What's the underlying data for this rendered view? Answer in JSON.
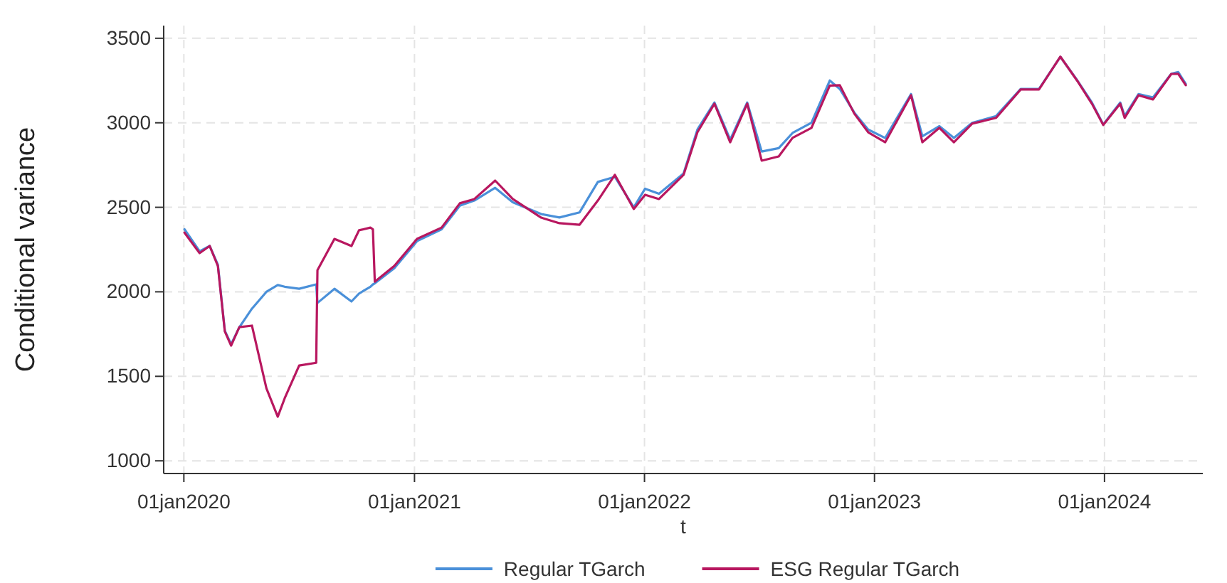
{
  "chart_data": {
    "type": "line",
    "xlabel": "t",
    "ylabel": "Conditional variance",
    "x": [
      "2020-01-02",
      "2020-01-26",
      "2020-02-11",
      "2020-02-24",
      "2020-03-06",
      "2020-03-16",
      "2020-03-29",
      "2020-04-18",
      "2020-05-11",
      "2020-05-29",
      "2020-06-09",
      "2020-07-02",
      "2020-07-29",
      "2020-07-31",
      "2020-08-27",
      "2020-09-23",
      "2020-10-05",
      "2020-10-23",
      "2020-10-27",
      "2020-10-30",
      "2020-11-30",
      "2021-01-05",
      "2021-02-13",
      "2021-03-14",
      "2021-04-06",
      "2021-05-09",
      "2021-06-06",
      "2021-07-21",
      "2021-08-19",
      "2021-09-20",
      "2021-10-19",
      "2021-11-15",
      "2021-12-15",
      "2022-01-02",
      "2022-01-24",
      "2022-03-04",
      "2022-03-26",
      "2022-04-22",
      "2022-05-17",
      "2022-06-13",
      "2022-07-06",
      "2022-08-02",
      "2022-08-24",
      "2022-09-23",
      "2022-10-22",
      "2022-11-07",
      "2022-11-30",
      "2022-12-22",
      "2023-01-18",
      "2023-02-28",
      "2023-03-18",
      "2023-04-14",
      "2023-05-07",
      "2023-06-05",
      "2023-07-13",
      "2023-08-21",
      "2023-09-19",
      "2023-10-23",
      "2023-11-19",
      "2023-12-12",
      "2023-12-30",
      "2024-01-26",
      "2024-02-02",
      "2024-02-24",
      "2024-03-18",
      "2024-04-16",
      "2024-04-27",
      "2024-05-09"
    ],
    "series": [
      {
        "name": "Regular TGarch",
        "color": "#4a90d9",
        "values": [
          2370,
          2240,
          2271,
          2160,
          1770,
          1690,
          1790,
          1900,
          2000,
          2040,
          2030,
          2018,
          2044,
          1934,
          2018,
          1943,
          1990,
          2030,
          2044,
          2050,
          2140,
          2300,
          2370,
          2510,
          2540,
          2615,
          2530,
          2460,
          2440,
          2470,
          2650,
          2680,
          2500,
          2610,
          2580,
          2700,
          2960,
          3120,
          2900,
          3120,
          2830,
          2850,
          2940,
          3000,
          3250,
          3200,
          3060,
          2960,
          2910,
          3170,
          2920,
          2980,
          2910,
          3000,
          3040,
          3200,
          3200,
          3390,
          3250,
          3120,
          2990,
          3120,
          3040,
          3170,
          3150,
          3290,
          3300,
          3230
        ]
      },
      {
        "name": "ESG Regular TGarch",
        "color": "#b8175f",
        "values": [
          2350,
          2229,
          2271,
          2153,
          1766,
          1682,
          1791,
          1800,
          1429,
          1261,
          1370,
          1564,
          1580,
          2128,
          2313,
          2271,
          2364,
          2380,
          2370,
          2060,
          2153,
          2313,
          2380,
          2524,
          2549,
          2658,
          2549,
          2439,
          2406,
          2397,
          2540,
          2692,
          2490,
          2574,
          2549,
          2692,
          2944,
          3113,
          2885,
          3113,
          2776,
          2801,
          2911,
          2970,
          3220,
          3222,
          3054,
          2944,
          2885,
          3163,
          2885,
          2970,
          2885,
          2995,
          3029,
          3197,
          3197,
          3391,
          3247,
          3113,
          2987,
          3113,
          3029,
          3163,
          3138,
          3289,
          3290,
          3222
        ]
      }
    ],
    "xlim": [
      "2019-11-30",
      "2024-06-05"
    ],
    "ylim": [
      925,
      3575
    ],
    "xticks": [
      {
        "value": "2020-01-01",
        "label": "01jan2020"
      },
      {
        "value": "2021-01-01",
        "label": "01jan2021"
      },
      {
        "value": "2022-01-01",
        "label": "01jan2022"
      },
      {
        "value": "2023-01-01",
        "label": "01jan2023"
      },
      {
        "value": "2024-01-01",
        "label": "01jan2024"
      }
    ],
    "yticks": [
      1000,
      1500,
      2000,
      2500,
      3000,
      3500
    ],
    "grid": true,
    "legend": "bottom",
    "line_style": "solid",
    "marker": "none"
  }
}
